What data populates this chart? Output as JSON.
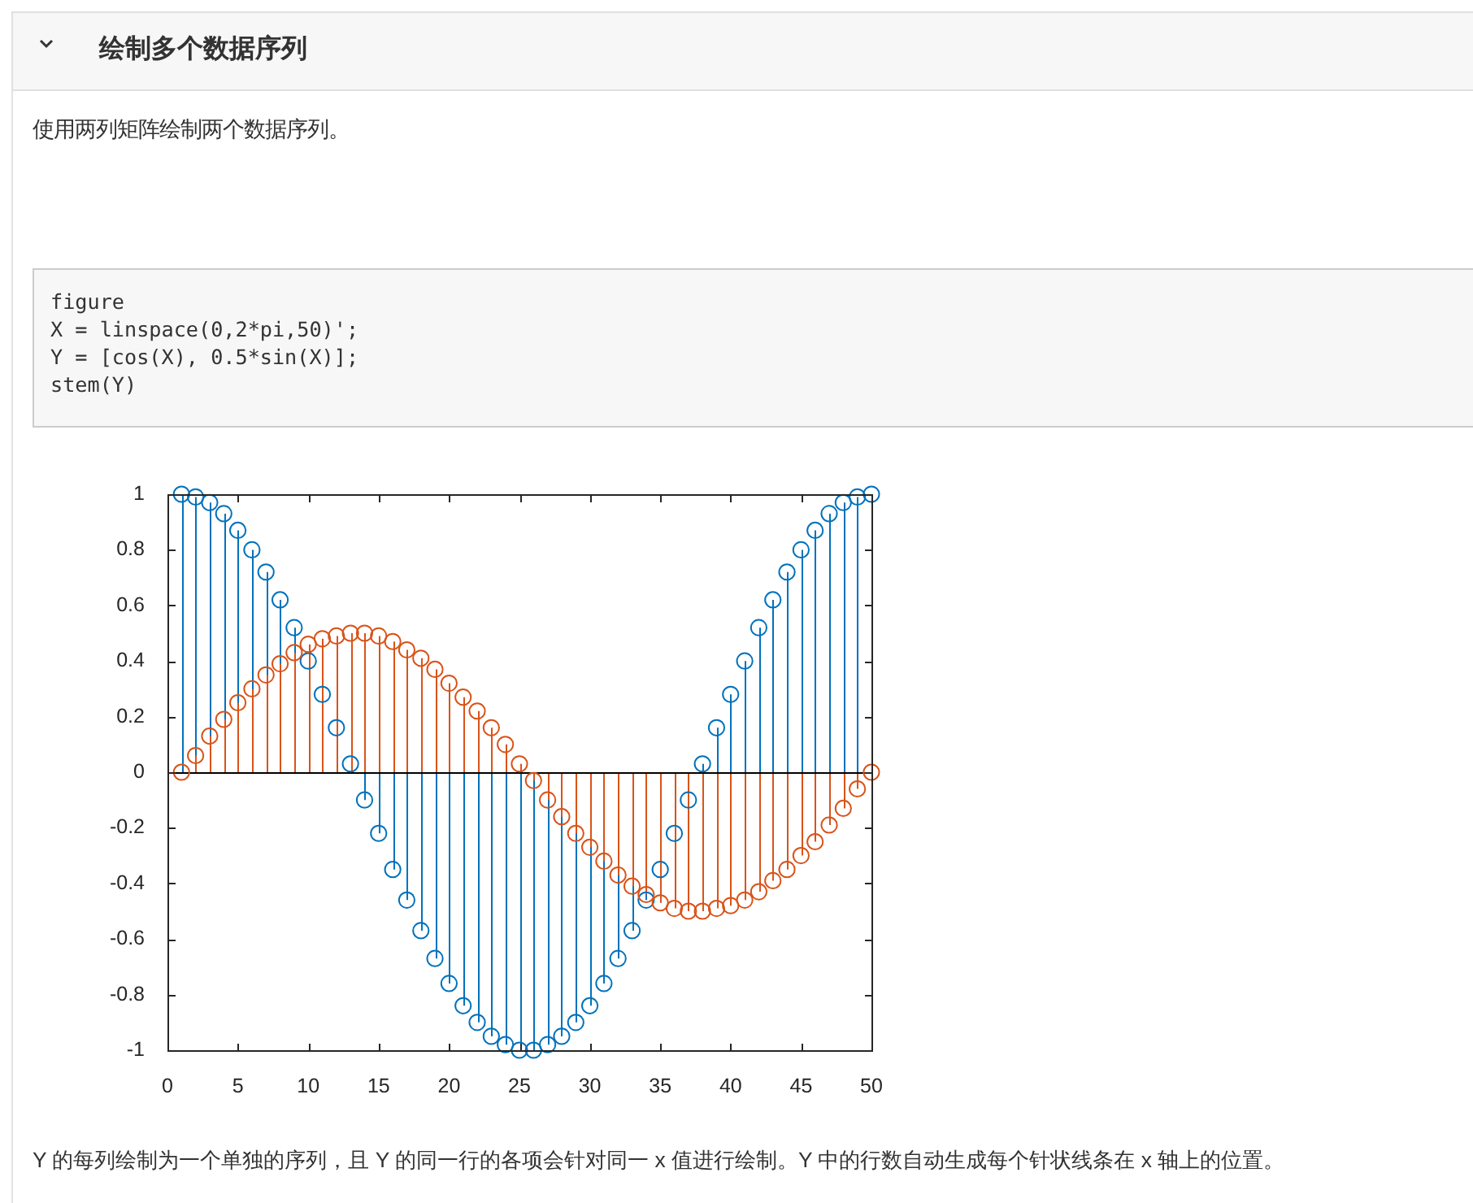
{
  "chart_data": {
    "type": "lollipop",
    "title": "绘制多个数据序列",
    "subtitle": "使用两列矩阵绘制两个数据序列。",
    "annotations": [
      "figure\nX = linspace(0,2*pi,50)';\nY = [cos(X), 0.5*sin(X)];\nstem(Y)",
      "Y 的每列绘制为一个单独的序列，且 Y 的同一行的各项会针对同一 x 值进行绘制。Y 中的行数自动生成每个针状线条在 x 轴上的位置。"
    ],
    "x": [
      1,
      2,
      3,
      4,
      5,
      6,
      7,
      8,
      9,
      10,
      11,
      12,
      13,
      14,
      15,
      16,
      17,
      18,
      19,
      20,
      21,
      22,
      23,
      24,
      25,
      26,
      27,
      28,
      29,
      30,
      31,
      32,
      33,
      34,
      35,
      36,
      37,
      38,
      39,
      40,
      41,
      42,
      43,
      44,
      45,
      46,
      47,
      48,
      49,
      50
    ],
    "series": [
      {
        "color": "#0072bd",
        "values": [
          1,
          0.99,
          0.97,
          0.93,
          0.87,
          0.8,
          0.72,
          0.62,
          0.52,
          0.4,
          0.28,
          0.16,
          0.03,
          -0.1,
          -0.22,
          -0.35,
          -0.46,
          -0.57,
          -0.67,
          -0.76,
          -0.84,
          -0.9,
          -0.95,
          -0.98,
          -1,
          -1,
          -0.98,
          -0.95,
          -0.9,
          -0.84,
          -0.76,
          -0.67,
          -0.57,
          -0.46,
          -0.35,
          -0.22,
          -0.1,
          0.03,
          0.16,
          0.28,
          0.4,
          0.52,
          0.62,
          0.72,
          0.8,
          0.87,
          0.93,
          0.97,
          0.99,
          1
        ]
      },
      {
        "color": "#d95319",
        "values": [
          0,
          0.06,
          0.13,
          0.19,
          0.25,
          0.3,
          0.35,
          0.39,
          0.43,
          0.46,
          0.48,
          0.49,
          0.5,
          0.5,
          0.49,
          0.47,
          0.44,
          0.41,
          0.37,
          0.32,
          0.27,
          0.22,
          0.16,
          0.1,
          0.03,
          -0.03,
          -0.1,
          -0.16,
          -0.22,
          -0.27,
          -0.32,
          -0.37,
          -0.41,
          -0.44,
          -0.47,
          -0.49,
          -0.5,
          -0.5,
          -0.49,
          -0.48,
          -0.46,
          -0.43,
          -0.39,
          -0.35,
          -0.3,
          -0.25,
          -0.19,
          -0.13,
          -0.06,
          0
        ]
      }
    ],
    "xlim": [
      0,
      50
    ],
    "xticks": [
      0,
      5,
      10,
      15,
      20,
      25,
      30,
      35,
      40,
      45,
      50
    ],
    "ylim": [
      -1,
      1
    ],
    "yticks": [
      -1,
      -0.8,
      -0.6,
      -0.4,
      -0.2,
      0,
      0.2,
      0.4,
      0.6,
      0.8,
      1
    ],
    "marker": "circle"
  }
}
